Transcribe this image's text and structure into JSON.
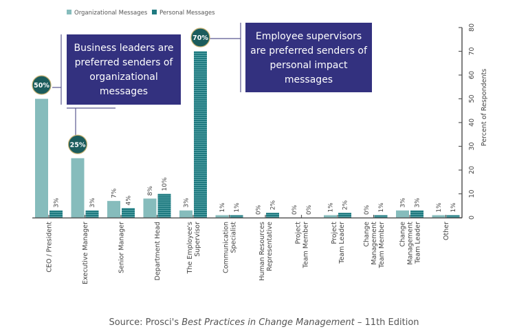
{
  "chart_data": {
    "type": "bar",
    "ylabel": "Percent of Respondents",
    "ylim": [
      0,
      80
    ],
    "yticks": [
      0,
      10,
      20,
      30,
      40,
      50,
      60,
      70,
      80
    ],
    "y_axis_side": "right",
    "grid": false,
    "legend_placement": "top-left",
    "categories": [
      [
        "CEO / President"
      ],
      [
        "Executive Manager"
      ],
      [
        "Senior Manager"
      ],
      [
        "Department Head"
      ],
      [
        "The Employee's",
        "Supervisor"
      ],
      [
        "Communication",
        "Specialist"
      ],
      [
        "Human Resources",
        "Representative"
      ],
      [
        "Project",
        "Team Member"
      ],
      [
        "Project",
        "Team Leader"
      ],
      [
        "Change",
        "Management",
        "Team Member"
      ],
      [
        "Change",
        "Management",
        "Team Leader"
      ],
      [
        "Other"
      ]
    ],
    "series": [
      {
        "name": "Organizational Messages",
        "color": "#86bcbc",
        "values": [
          50,
          25,
          7,
          8,
          3,
          1,
          0,
          0,
          1,
          0,
          3,
          1
        ]
      },
      {
        "name": "Personal Messages",
        "color": "#1f7a80",
        "values": [
          3,
          3,
          4,
          10,
          70,
          1,
          2,
          0,
          2,
          1,
          3,
          1
        ]
      }
    ],
    "value_label_suffix": "%",
    "highlights": [
      {
        "series": 0,
        "category": 0,
        "label": "50%"
      },
      {
        "series": 0,
        "category": 1,
        "label": "25%"
      },
      {
        "series": 1,
        "category": 4,
        "label": "70%"
      }
    ],
    "annotations": [
      "Business leaders are preferred senders of organizational messages",
      "Employee supervisors are preferred senders of personal impact messages"
    ]
  },
  "colors": {
    "callout": "#33317f",
    "badge": "#1b5c5c",
    "badge_border": "#c8b273",
    "axis": "#555555"
  },
  "source": {
    "prefix": "Source: Prosci's ",
    "title": "Best Practices in Change Management",
    "suffix": " – 11th Edition"
  }
}
